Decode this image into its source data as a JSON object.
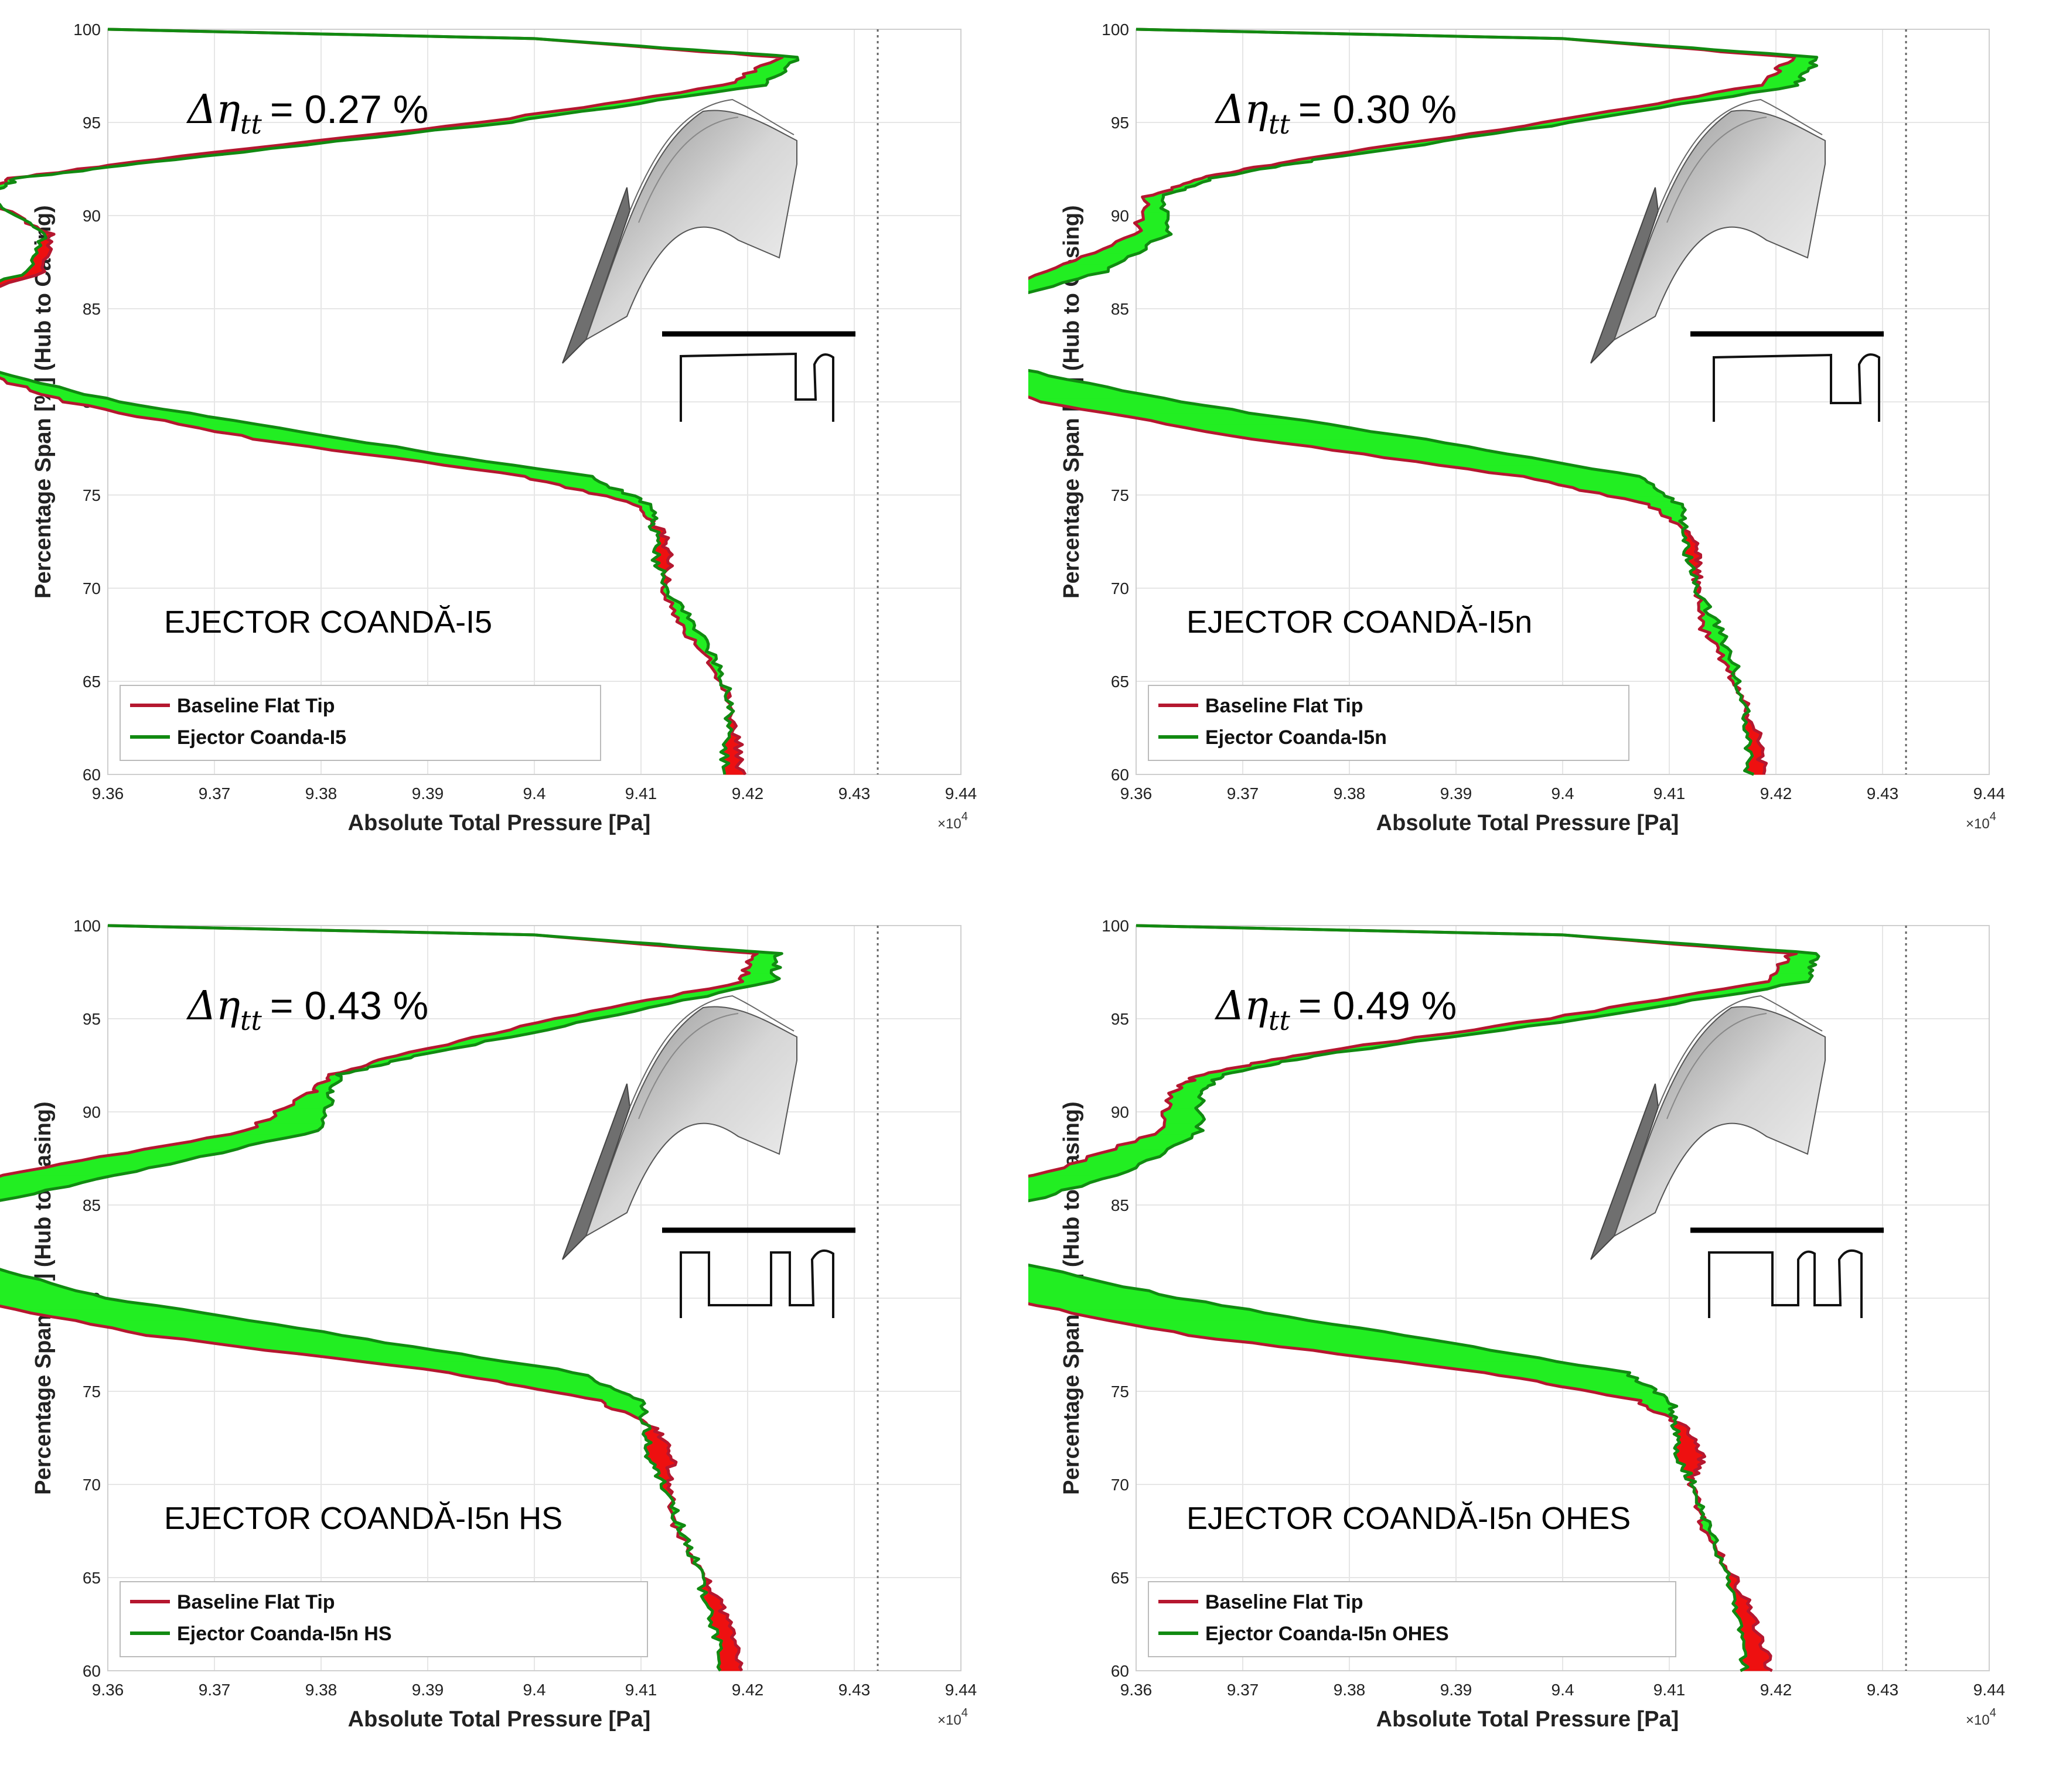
{
  "colors": {
    "baseline": "#b5172f",
    "ejector": "#118a11",
    "fill_gain": "#22ee22",
    "fill_loss": "#ee1010",
    "grid": "#e6e6e6",
    "reference_line": "#666666"
  },
  "chart_data": [
    {
      "type": "line",
      "title": "EJECTOR COANDĂ-I5",
      "delta_eta_label": "Δη",
      "delta_eta_sub": "tt",
      "delta_eta_value": "= 0.27 %",
      "xlabel": "Absolute Total Pressure [Pa]",
      "ylabel": "Percentage Span [%] (Hub to Casing)",
      "x_exponent_label": "×10",
      "x_exponent_power": "4",
      "xlim": [
        93600,
        94400
      ],
      "ylim": [
        60,
        100
      ],
      "xticks": [
        93600,
        93700,
        93800,
        93900,
        94000,
        94100,
        94200,
        94300,
        94400
      ],
      "xtick_labels": [
        "9.36",
        "9.37",
        "9.38",
        "9.39",
        "9.4",
        "9.41",
        "9.42",
        "9.43",
        "9.44"
      ],
      "yticks": [
        60,
        65,
        70,
        75,
        80,
        85,
        90,
        95,
        100
      ],
      "ytick_labels": [
        "60",
        "65",
        "70",
        "75",
        "80",
        "85",
        "90",
        "95",
        "100"
      ],
      "reference_x": 94322,
      "legend": [
        "Baseline Flat Tip",
        "Ejector Coanda-I5"
      ],
      "legend_location": "lower-left",
      "tip_profile": "I5",
      "span": [
        60,
        62,
        64,
        66,
        68,
        70,
        71.5,
        73,
        74.5,
        76,
        78,
        80,
        82,
        83.5,
        85,
        87,
        89,
        91,
        92,
        93,
        95,
        97,
        98.5,
        99.5,
        100
      ],
      "series": [
        {
          "name": "Baseline Flat Tip",
          "values": [
            94194,
            94190,
            94183,
            94164,
            94138,
            94122,
            94128,
            94120,
            94095,
            93990,
            93740,
            93560,
            93460,
            93415,
            93440,
            93540,
            93545,
            93480,
            93510,
            93640,
            93950,
            94180,
            94230,
            94000,
            93600
          ]
        },
        {
          "name": "Ejector Coanda-I5",
          "values": [
            94178,
            94180,
            94184,
            94170,
            94150,
            94124,
            94115,
            94113,
            94108,
            94050,
            93820,
            93610,
            93470,
            93400,
            93425,
            93525,
            93540,
            93485,
            93515,
            93660,
            93975,
            94215,
            94248,
            94000,
            93600
          ]
        }
      ]
    },
    {
      "type": "line",
      "title": "EJECTOR COANDĂ-I5n",
      "delta_eta_label": "Δη",
      "delta_eta_sub": "tt",
      "delta_eta_value": "= 0.30 %",
      "xlabel": "Absolute Total Pressure [Pa]",
      "ylabel": "Percentage Span [%] (Hub to Casing)",
      "x_exponent_label": "×10",
      "x_exponent_power": "4",
      "xlim": [
        93600,
        94400
      ],
      "ylim": [
        60,
        100
      ],
      "xticks": [
        93600,
        93700,
        93800,
        93900,
        94000,
        94100,
        94200,
        94300,
        94400
      ],
      "xtick_labels": [
        "9.36",
        "9.37",
        "9.38",
        "9.39",
        "9.4",
        "9.41",
        "9.42",
        "9.43",
        "9.44"
      ],
      "yticks": [
        60,
        65,
        70,
        75,
        80,
        85,
        90,
        95,
        100
      ],
      "ytick_labels": [
        "60",
        "65",
        "70",
        "75",
        "80",
        "85",
        "90",
        "95",
        "100"
      ],
      "reference_x": 94322,
      "legend": [
        "Baseline Flat Tip",
        "Ejector Coanda-I5n"
      ],
      "legend_location": "lower-left",
      "tip_profile": "I5n",
      "span": [
        60,
        62,
        64,
        66,
        68,
        70,
        71.5,
        73,
        74.5,
        76,
        78,
        80,
        82,
        83.5,
        85,
        87,
        89,
        91,
        92,
        93,
        95,
        97,
        98.5,
        99.5,
        100
      ],
      "series": [
        {
          "name": "Baseline Flat Tip",
          "values": [
            94190,
            94183,
            94170,
            94152,
            94130,
            94125,
            94128,
            94120,
            94080,
            93960,
            93710,
            93510,
            93405,
            93370,
            93400,
            93520,
            93600,
            93610,
            93660,
            93750,
            93985,
            94185,
            94215,
            94000,
            93600
          ]
        },
        {
          "name": "Ejector Coanda-I5n",
          "values": [
            94175,
            94174,
            94170,
            94160,
            94145,
            94125,
            94118,
            94114,
            94110,
            94070,
            93870,
            93640,
            93470,
            93400,
            93440,
            93570,
            93630,
            93625,
            93670,
            93770,
            94010,
            94220,
            94240,
            94000,
            93600
          ]
        }
      ]
    },
    {
      "type": "line",
      "title": "EJECTOR COANDĂ-I5n   HS",
      "delta_eta_label": "Δη",
      "delta_eta_sub": "tt",
      "delta_eta_value": "= 0.43 %",
      "xlabel": "Absolute Total Pressure [Pa]",
      "ylabel": "Percentage Span [%] (Hub to Casing)",
      "x_exponent_label": "×10",
      "x_exponent_power": "4",
      "xlim": [
        93600,
        94400
      ],
      "ylim": [
        60,
        100
      ],
      "xticks": [
        93600,
        93700,
        93800,
        93900,
        94000,
        94100,
        94200,
        94300,
        94400
      ],
      "xtick_labels": [
        "9.36",
        "9.37",
        "9.38",
        "9.39",
        "9.4",
        "9.41",
        "9.42",
        "9.43",
        "9.44"
      ],
      "yticks": [
        60,
        65,
        70,
        75,
        80,
        85,
        90,
        95,
        100
      ],
      "ytick_labels": [
        "60",
        "65",
        "70",
        "75",
        "80",
        "85",
        "90",
        "95",
        "100"
      ],
      "reference_x": 94322,
      "legend": [
        "Baseline Flat Tip",
        "Ejector Coanda-I5n HS"
      ],
      "legend_location": "lower-left",
      "tip_profile": "I5n HS",
      "span": [
        60,
        62,
        64,
        66,
        68,
        70,
        71.5,
        73,
        74.5,
        76,
        78,
        80,
        82,
        83.5,
        85,
        87,
        89,
        91,
        92,
        93,
        95,
        97,
        98.5,
        99.5,
        100
      ],
      "series": [
        {
          "name": "Baseline Flat Tip",
          "values": [
            94195,
            94185,
            94170,
            94150,
            94130,
            94125,
            94130,
            94115,
            94060,
            93920,
            93640,
            93460,
            93365,
            93345,
            93370,
            93540,
            93730,
            93790,
            93810,
            93870,
            94020,
            94195,
            94205,
            94000,
            93600
          ]
        },
        {
          "name": "Ejector Coanda-I5n HS",
          "values": [
            94175,
            94170,
            94160,
            94150,
            94135,
            94120,
            94108,
            94105,
            94100,
            94040,
            93820,
            93600,
            93470,
            93430,
            93480,
            93640,
            93800,
            93810,
            93818,
            93890,
            94060,
            94225,
            94228,
            94000,
            93600
          ]
        }
      ]
    },
    {
      "type": "line",
      "title": "EJECTOR COANDĂ-I5n   OHES",
      "delta_eta_label": "Δη",
      "delta_eta_sub": "tt",
      "delta_eta_value": "= 0.49 %",
      "xlabel": "Absolute Total Pressure [Pa]",
      "ylabel": "Percentage Span [%] (Hub to Casing)",
      "x_exponent_label": "×10",
      "x_exponent_power": "4",
      "xlim": [
        93600,
        94400
      ],
      "ylim": [
        60,
        100
      ],
      "xticks": [
        93600,
        93700,
        93800,
        93900,
        94000,
        94100,
        94200,
        94300,
        94400
      ],
      "xtick_labels": [
        "9.36",
        "9.37",
        "9.38",
        "9.39",
        "9.4",
        "9.41",
        "9.42",
        "9.43",
        "9.44"
      ],
      "yticks": [
        60,
        65,
        70,
        75,
        80,
        85,
        90,
        95,
        100
      ],
      "ytick_labels": [
        "60",
        "65",
        "70",
        "75",
        "80",
        "85",
        "90",
        "95",
        "100"
      ],
      "reference_x": 94322,
      "legend": [
        "Baseline Flat Tip",
        "Ejector Coanda-I5n OHES"
      ],
      "legend_location": "lower-left",
      "tip_profile": "I5n OHES",
      "span": [
        60,
        62,
        64,
        66,
        68,
        70,
        71.5,
        73,
        74.5,
        76,
        78,
        80,
        82,
        83.5,
        85,
        87,
        89,
        91,
        92,
        93,
        95,
        97,
        98.5,
        99.5,
        100
      ],
      "series": [
        {
          "name": "Baseline Flat Tip",
          "values": [
            94195,
            94185,
            94170,
            94150,
            94130,
            94122,
            94130,
            94118,
            94070,
            93930,
            93650,
            93470,
            93380,
            93360,
            93385,
            93530,
            93625,
            93630,
            93660,
            93745,
            93985,
            94190,
            94215,
            94000,
            93600
          ]
        },
        {
          "name": "Ejector Coanda-I5n OHES",
          "values": [
            94170,
            94168,
            94160,
            94148,
            94135,
            94122,
            94108,
            94106,
            94102,
            94060,
            93850,
            93640,
            93480,
            93440,
            93490,
            93600,
            93660,
            93660,
            93680,
            93765,
            94020,
            94230,
            94238,
            94000,
            93600
          ]
        }
      ]
    }
  ]
}
